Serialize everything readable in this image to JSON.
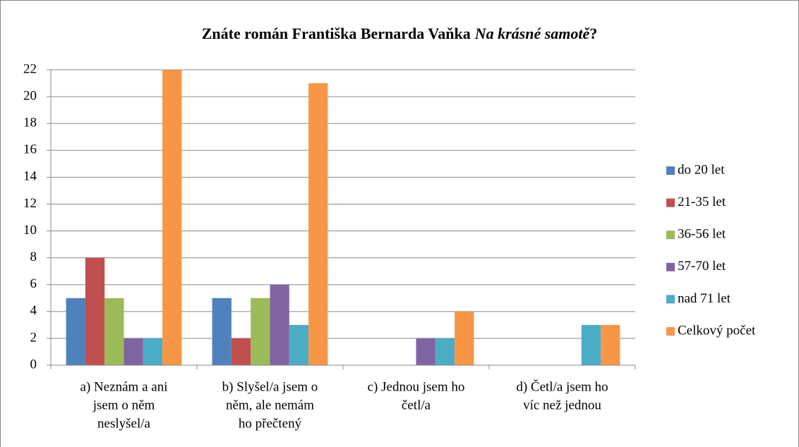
{
  "chart_data": {
    "type": "bar",
    "title": [
      "Znáte román Františka Bernarda Vaňka",
      "Na krásné samotě",
      "?"
    ],
    "title_italic": [
      false,
      true,
      false
    ],
    "categories": [
      [
        "a) Neznám a ani",
        "jsem o něm",
        "neslyšel/a"
      ],
      [
        "b) Slyšel/a jsem o",
        "něm, ale nemám",
        "ho přečtený"
      ],
      [
        "c) Jednou jsem ho",
        "četl/a"
      ],
      [
        "d) Četl/a jsem ho",
        "víc než jednou"
      ]
    ],
    "series": [
      {
        "name": "do 20 let",
        "color": "#4f81bd",
        "values": [
          5,
          5,
          0,
          0
        ]
      },
      {
        "name": "21-35 let",
        "color": "#c0504d",
        "values": [
          8,
          2,
          0,
          0
        ]
      },
      {
        "name": "36-56 let",
        "color": "#9bbb59",
        "values": [
          5,
          5,
          0,
          0
        ]
      },
      {
        "name": "57-70 let",
        "color": "#8064a2",
        "values": [
          2,
          6,
          2,
          0
        ]
      },
      {
        "name": "nad 71 let",
        "color": "#4bacc6",
        "values": [
          2,
          3,
          2,
          3
        ]
      },
      {
        "name": "Celkový počet",
        "color": "#f79646",
        "values": [
          22,
          21,
          4,
          3
        ]
      }
    ],
    "ylim": [
      0,
      22
    ],
    "yticks": [
      0,
      2,
      4,
      6,
      8,
      10,
      12,
      14,
      16,
      18,
      20,
      22
    ],
    "grid": true,
    "legend": "right"
  }
}
